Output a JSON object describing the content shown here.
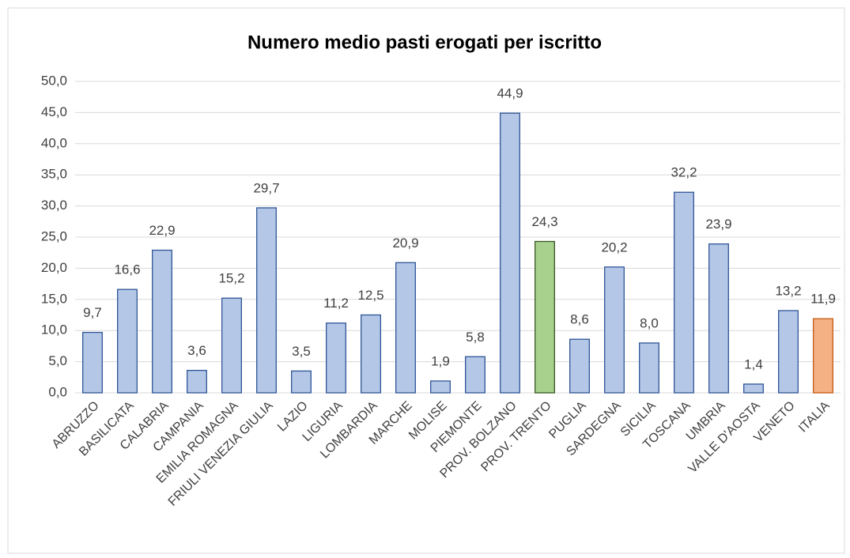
{
  "chart_data": {
    "type": "bar",
    "title": "Numero medio pasti erogati per iscritto",
    "categories": [
      "ABRUZZO",
      "BASILICATA",
      "CALABRIA",
      "CAMPANIA",
      "EMILIA ROMAGNA",
      "FRIULI VENEZIA GIULIA",
      "LAZIO",
      "LIGURIA",
      "LOMBARDIA",
      "MARCHE",
      "MOLISE",
      "PIEMONTE",
      "PROV. BOLZANO",
      "PROV. TRENTO",
      "PUGLIA",
      "SARDEGNA",
      "SICILIA",
      "TOSCANA",
      "UMBRIA",
      "VALLE D'AOSTA",
      "VENETO",
      "ITALIA"
    ],
    "values": [
      9.7,
      16.6,
      22.9,
      3.6,
      15.2,
      29.7,
      3.5,
      11.2,
      12.5,
      20.9,
      1.9,
      5.8,
      44.9,
      24.3,
      8.6,
      20.2,
      8.0,
      32.2,
      23.9,
      1.4,
      13.2,
      11.9
    ],
    "value_labels": [
      "9,7",
      "16,6",
      "22,9",
      "3,6",
      "15,2",
      "29,7",
      "3,5",
      "11,2",
      "12,5",
      "20,9",
      "1,9",
      "5,8",
      "44,9",
      "24,3",
      "8,6",
      "20,2",
      "8,0",
      "32,2",
      "23,9",
      "1,4",
      "13,2",
      "11,9"
    ],
    "colors": [
      "#b4c7e7",
      "#b4c7e7",
      "#b4c7e7",
      "#b4c7e7",
      "#b4c7e7",
      "#b4c7e7",
      "#b4c7e7",
      "#b4c7e7",
      "#b4c7e7",
      "#b4c7e7",
      "#b4c7e7",
      "#b4c7e7",
      "#b4c7e7",
      "#a9d18e",
      "#b4c7e7",
      "#b4c7e7",
      "#b4c7e7",
      "#b4c7e7",
      "#b4c7e7",
      "#b4c7e7",
      "#b4c7e7",
      "#f4b183"
    ],
    "edgecolors": [
      "#2f5597",
      "#2f5597",
      "#2f5597",
      "#2f5597",
      "#2f5597",
      "#2f5597",
      "#2f5597",
      "#2f5597",
      "#2f5597",
      "#2f5597",
      "#2f5597",
      "#2f5597",
      "#2f5597",
      "#385723",
      "#2f5597",
      "#2f5597",
      "#2f5597",
      "#2f5597",
      "#2f5597",
      "#2f5597",
      "#2f5597",
      "#c55a11"
    ],
    "ylim": [
      0,
      50
    ],
    "yticks": [
      {
        "value": 0,
        "label": "0,0"
      },
      {
        "value": 5,
        "label": "5,0"
      },
      {
        "value": 10,
        "label": "10,0"
      },
      {
        "value": 15,
        "label": "15,0"
      },
      {
        "value": 20,
        "label": "20,0"
      },
      {
        "value": 25,
        "label": "25,0"
      },
      {
        "value": 30,
        "label": "30,0"
      },
      {
        "value": 35,
        "label": "35,0"
      },
      {
        "value": 40,
        "label": "40,0"
      },
      {
        "value": 45,
        "label": "45,0"
      },
      {
        "value": 50,
        "label": "50,0"
      }
    ],
    "grid": true
  }
}
